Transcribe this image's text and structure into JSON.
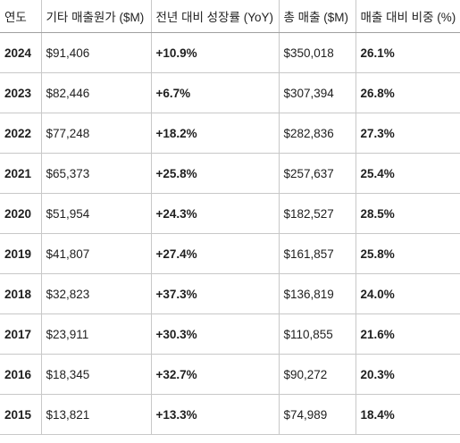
{
  "table": {
    "headers": [
      "연도",
      "기타 매출원가 ($M)",
      "전년 대비 성장률 (YoY)",
      "총 매출 ($M)",
      "매출 대비 비중 (%)"
    ],
    "rows": [
      {
        "year": "2024",
        "cost": "$91,406",
        "growth": "+10.9%",
        "revenue": "$350,018",
        "share": "26.1%"
      },
      {
        "year": "2023",
        "cost": "$82,446",
        "growth": "+6.7%",
        "revenue": "$307,394",
        "share": "26.8%"
      },
      {
        "year": "2022",
        "cost": "$77,248",
        "growth": "+18.2%",
        "revenue": "$282,836",
        "share": "27.3%"
      },
      {
        "year": "2021",
        "cost": "$65,373",
        "growth": "+25.8%",
        "revenue": "$257,637",
        "share": "25.4%"
      },
      {
        "year": "2020",
        "cost": "$51,954",
        "growth": "+24.3%",
        "revenue": "$182,527",
        "share": "28.5%"
      },
      {
        "year": "2019",
        "cost": "$41,807",
        "growth": "+27.4%",
        "revenue": "$161,857",
        "share": "25.8%"
      },
      {
        "year": "2018",
        "cost": "$32,823",
        "growth": "+37.3%",
        "revenue": "$136,819",
        "share": "24.0%"
      },
      {
        "year": "2017",
        "cost": "$23,911",
        "growth": "+30.3%",
        "revenue": "$110,855",
        "share": "21.6%"
      },
      {
        "year": "2016",
        "cost": "$18,345",
        "growth": "+32.7%",
        "revenue": "$90,272",
        "share": "20.3%"
      },
      {
        "year": "2015",
        "cost": "$13,821",
        "growth": "+13.3%",
        "revenue": "$74,989",
        "share": "18.4%"
      }
    ]
  }
}
